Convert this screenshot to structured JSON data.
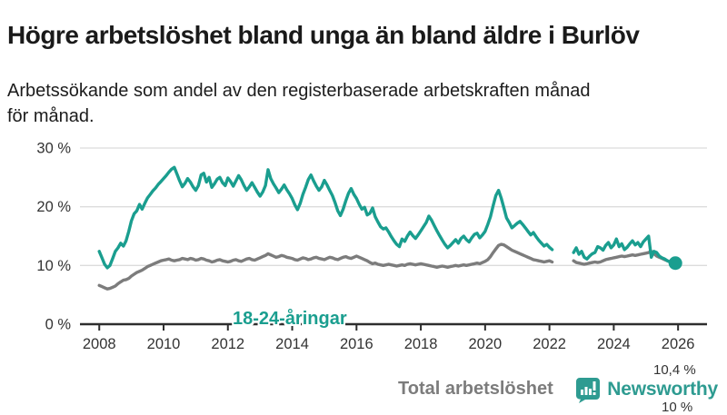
{
  "header": {
    "title": "Högre arbetslöshet bland unga än bland äldre i Burlöv",
    "subtitle": "Arbetssökande som andel av den registerbaserade arbetskraften månad\nför månad."
  },
  "colors": {
    "accent_teal": "#1a9e8f",
    "line_gray": "#7c7c7c",
    "axis_dark": "#333333",
    "gridline": "#dcdcdc",
    "logo_teal": "#2e9b91",
    "background": "#ffffff"
  },
  "branding": {
    "logo_text": "Newsworthy",
    "logo_icon": "bar-chart-speech-bubble"
  },
  "chart_data": {
    "type": "line",
    "title": "Högre arbetslöshet bland unga än bland äldre i Burlöv",
    "subtitle": "Arbetssökande som andel av den registerbaserade arbetskraften månad för månad.",
    "x_unit": "month",
    "x_start_year": 2008,
    "x_step_months": 1,
    "x_axis_range": [
      2007.4,
      2026.9
    ],
    "y_axis_range": [
      0,
      30
    ],
    "x_ticks": [
      2008,
      2010,
      2012,
      2014,
      2016,
      2018,
      2020,
      2022,
      2024,
      2026
    ],
    "y_ticks": [
      0,
      10,
      20,
      30
    ],
    "y_tick_suffix": " %",
    "grid": true,
    "data_gap_note": "values are null where the line is broken during 2022",
    "series": [
      {
        "name": "18-24-åringar",
        "color": "#1a9e8f",
        "end_label": "10,4 %",
        "end_value": 10.4,
        "end_dot": true,
        "values": [
          12.4,
          11.3,
          10.2,
          9.6,
          10.0,
          11.2,
          12.4,
          13.0,
          13.8,
          13.3,
          14.2,
          15.8,
          17.6,
          18.8,
          19.3,
          20.4,
          19.6,
          20.6,
          21.5,
          22.1,
          22.7,
          23.2,
          23.8,
          24.3,
          24.8,
          25.3,
          25.9,
          26.4,
          26.7,
          25.6,
          24.4,
          23.4,
          24.0,
          24.8,
          24.2,
          23.4,
          22.8,
          23.6,
          25.4,
          25.7,
          24.2,
          25.0,
          23.3,
          23.9,
          24.7,
          25.0,
          24.1,
          23.6,
          24.9,
          24.3,
          23.5,
          24.4,
          25.3,
          24.6,
          23.6,
          22.8,
          23.4,
          24.1,
          23.3,
          22.5,
          21.8,
          22.5,
          23.6,
          26.3,
          24.8,
          23.9,
          23.2,
          22.4,
          23.0,
          23.7,
          22.9,
          22.2,
          21.4,
          20.3,
          19.5,
          20.6,
          22.1,
          23.3,
          24.6,
          25.4,
          24.4,
          23.5,
          22.8,
          23.4,
          24.5,
          23.7,
          22.8,
          21.9,
          20.7,
          19.3,
          18.5,
          19.6,
          21.0,
          22.3,
          23.1,
          22.1,
          21.4,
          20.4,
          19.6,
          19.9,
          18.6,
          18.9,
          19.8,
          18.3,
          17.4,
          16.6,
          16.2,
          16.4,
          15.7,
          14.9,
          14.2,
          13.6,
          13.2,
          14.5,
          14.1,
          15.0,
          15.7,
          15.1,
          14.6,
          15.2,
          15.9,
          16.6,
          17.3,
          18.4,
          17.7,
          16.8,
          15.9,
          15.1,
          14.3,
          13.6,
          13.0,
          13.4,
          13.9,
          14.4,
          13.8,
          14.6,
          15.0,
          14.4,
          14.0,
          14.7,
          15.3,
          15.5,
          14.7,
          15.2,
          15.8,
          17.0,
          18.3,
          20.2,
          21.9,
          22.8,
          21.5,
          19.8,
          18.1,
          17.3,
          16.4,
          16.8,
          17.2,
          17.5,
          17.0,
          16.4,
          15.8,
          15.2,
          15.6,
          14.9,
          14.3,
          13.8,
          13.3,
          13.6,
          13.1,
          12.7,
          null,
          null,
          null,
          null,
          null,
          null,
          null,
          12.2,
          13.0,
          11.9,
          12.4,
          11.4,
          11.1,
          11.6,
          12.0,
          12.2,
          13.2,
          13.0,
          12.6,
          13.4,
          13.9,
          13.0,
          13.5,
          14.5,
          13.2,
          13.7,
          12.7,
          13.1,
          13.7,
          14.2,
          13.5,
          13.9,
          13.2,
          14.0,
          14.5,
          15.0,
          11.4,
          12.4,
          12.2,
          11.6,
          11.3,
          11.1,
          10.8,
          10.6,
          10.4,
          10.4
        ]
      },
      {
        "name": "Total arbetslöshet",
        "color": "#7c7c7c",
        "end_label": "10 %",
        "end_value": 10.0,
        "end_dot": false,
        "values": [
          6.6,
          6.4,
          6.2,
          6.0,
          6.1,
          6.3,
          6.5,
          6.9,
          7.2,
          7.5,
          7.6,
          7.8,
          8.2,
          8.5,
          8.8,
          9.0,
          9.2,
          9.5,
          9.8,
          10.0,
          10.2,
          10.4,
          10.6,
          10.8,
          10.9,
          11.0,
          11.1,
          10.9,
          10.8,
          10.9,
          11.0,
          11.2,
          11.1,
          11.0,
          11.2,
          11.1,
          10.9,
          11.0,
          11.2,
          11.1,
          10.9,
          10.8,
          10.6,
          10.7,
          10.9,
          11.0,
          10.8,
          10.7,
          10.6,
          10.7,
          10.9,
          11.0,
          10.8,
          10.7,
          10.9,
          11.1,
          11.2,
          11.0,
          10.9,
          11.1,
          11.3,
          11.5,
          11.7,
          12.0,
          11.8,
          11.6,
          11.4,
          11.5,
          11.7,
          11.6,
          11.4,
          11.3,
          11.2,
          11.0,
          10.9,
          11.1,
          11.3,
          11.2,
          11.0,
          11.1,
          11.3,
          11.4,
          11.2,
          11.1,
          11.0,
          11.2,
          11.4,
          11.3,
          11.1,
          11.0,
          11.2,
          11.4,
          11.5,
          11.3,
          11.2,
          11.4,
          11.6,
          11.4,
          11.2,
          11.0,
          10.8,
          10.5,
          10.3,
          10.4,
          10.2,
          10.1,
          10.0,
          10.1,
          10.2,
          10.1,
          10.0,
          9.9,
          10.0,
          10.1,
          10.0,
          10.2,
          10.3,
          10.2,
          10.1,
          10.2,
          10.3,
          10.2,
          10.1,
          10.0,
          9.9,
          9.8,
          9.7,
          9.8,
          9.9,
          9.8,
          9.7,
          9.8,
          9.9,
          10.0,
          9.9,
          10.0,
          10.1,
          10.0,
          10.1,
          10.2,
          10.3,
          10.4,
          10.3,
          10.5,
          10.7,
          11.0,
          11.5,
          12.2,
          12.8,
          13.4,
          13.6,
          13.5,
          13.2,
          12.9,
          12.6,
          12.4,
          12.2,
          12.0,
          11.8,
          11.6,
          11.4,
          11.2,
          11.0,
          10.9,
          10.8,
          10.7,
          10.6,
          10.7,
          10.8,
          10.6,
          null,
          null,
          null,
          null,
          null,
          null,
          null,
          10.8,
          10.5,
          10.4,
          10.3,
          10.2,
          10.3,
          10.4,
          10.5,
          10.6,
          10.5,
          10.6,
          10.8,
          11.0,
          11.1,
          11.2,
          11.3,
          11.4,
          11.5,
          11.6,
          11.5,
          11.6,
          11.7,
          11.8,
          11.7,
          11.8,
          11.9,
          12.0,
          12.1,
          12.2,
          12.4,
          12.0,
          11.6,
          11.4,
          11.2,
          11.0,
          10.8,
          10.6,
          10.3,
          10.0
        ]
      }
    ],
    "legend_position": "inline-labels"
  }
}
